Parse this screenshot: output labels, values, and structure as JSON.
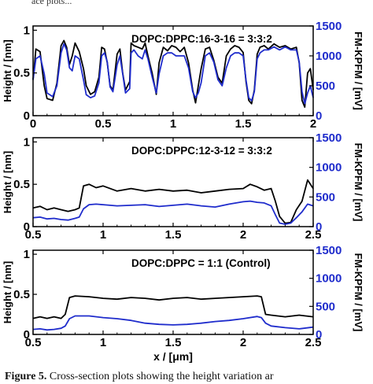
{
  "header_fragment": "ace plots...",
  "caption": {
    "label": "Figure 5.",
    "text": "Cross-section plots showing the height variation ar"
  },
  "chart_data": [
    {
      "type": "line",
      "title": "DOPC:DPPC:16-3-16 = 3:3:2",
      "xlabel": "",
      "ylabel": "Height / [nm]",
      "y2label": "FM-KPFM / [mV]",
      "xlim": [
        0,
        2
      ],
      "ylim": [
        0,
        1.05
      ],
      "y2lim": [
        0,
        1500
      ],
      "x_ticks": [
        "0",
        "0.5",
        "1",
        "1.5",
        "2"
      ],
      "y_ticks": [
        "0",
        "0.5",
        "1"
      ],
      "y2_ticks": [
        "0",
        "500",
        "1000",
        "1500"
      ],
      "colors": {
        "height": "#000000",
        "kpfm": "#1f2ccc"
      },
      "series": [
        {
          "axis": "left",
          "x": [
            0,
            0.02,
            0.05,
            0.08,
            0.1,
            0.14,
            0.17,
            0.2,
            0.22,
            0.24,
            0.26,
            0.28,
            0.3,
            0.33,
            0.36,
            0.38,
            0.41,
            0.44,
            0.47,
            0.49,
            0.51,
            0.53,
            0.55,
            0.57,
            0.6,
            0.62,
            0.64,
            0.66,
            0.69,
            0.7,
            0.72,
            0.75,
            0.78,
            0.8,
            0.82,
            0.85,
            0.88,
            0.9,
            0.93,
            0.96,
            0.99,
            1.02,
            1.05,
            1.08,
            1.11,
            1.14,
            1.16,
            1.18,
            1.2,
            1.23,
            1.26,
            1.29,
            1.32,
            1.35,
            1.38,
            1.41,
            1.44,
            1.47,
            1.5,
            1.52,
            1.54,
            1.56,
            1.58,
            1.6,
            1.62,
            1.65,
            1.68,
            1.72,
            1.76,
            1.8,
            1.84,
            1.88,
            1.9,
            1.92,
            1.94,
            1.96,
            1.98,
            2.0
          ],
          "values": [
            0.42,
            0.78,
            0.75,
            0.35,
            0.2,
            0.18,
            0.38,
            0.82,
            0.88,
            0.8,
            0.6,
            0.7,
            0.85,
            0.75,
            0.55,
            0.35,
            0.25,
            0.28,
            0.45,
            0.8,
            0.78,
            0.62,
            0.35,
            0.3,
            0.72,
            0.78,
            0.5,
            0.3,
            0.4,
            0.85,
            0.82,
            0.8,
            0.78,
            0.85,
            0.7,
            0.5,
            0.25,
            0.62,
            0.8,
            0.76,
            0.82,
            0.8,
            0.75,
            0.8,
            0.62,
            0.3,
            0.15,
            0.35,
            0.55,
            0.78,
            0.8,
            0.65,
            0.45,
            0.38,
            0.7,
            0.78,
            0.82,
            0.8,
            0.74,
            0.4,
            0.18,
            0.14,
            0.3,
            0.72,
            0.8,
            0.82,
            0.78,
            0.84,
            0.8,
            0.82,
            0.78,
            0.8,
            0.62,
            0.18,
            0.1,
            0.5,
            0.55,
            0.3
          ]
        },
        {
          "axis": "right",
          "x": [
            0,
            0.02,
            0.05,
            0.08,
            0.1,
            0.14,
            0.17,
            0.2,
            0.22,
            0.24,
            0.26,
            0.28,
            0.3,
            0.33,
            0.36,
            0.38,
            0.41,
            0.44,
            0.47,
            0.49,
            0.51,
            0.53,
            0.55,
            0.57,
            0.6,
            0.62,
            0.64,
            0.66,
            0.69,
            0.7,
            0.72,
            0.75,
            0.78,
            0.8,
            0.82,
            0.85,
            0.88,
            0.9,
            0.93,
            0.96,
            0.99,
            1.02,
            1.05,
            1.08,
            1.11,
            1.14,
            1.16,
            1.18,
            1.2,
            1.23,
            1.26,
            1.29,
            1.32,
            1.35,
            1.38,
            1.41,
            1.44,
            1.47,
            1.5,
            1.52,
            1.54,
            1.56,
            1.58,
            1.6,
            1.62,
            1.65,
            1.68,
            1.72,
            1.76,
            1.8,
            1.84,
            1.88,
            1.9,
            1.92,
            1.94,
            1.96,
            1.98,
            2.0
          ],
          "values": [
            600,
            950,
            1000,
            700,
            380,
            320,
            500,
            1050,
            1200,
            1100,
            800,
            750,
            1000,
            950,
            600,
            350,
            300,
            330,
            550,
            1000,
            1050,
            900,
            480,
            400,
            850,
            1000,
            700,
            380,
            450,
            1050,
            1100,
            1000,
            950,
            1100,
            950,
            650,
            380,
            700,
            1000,
            1050,
            1050,
            1000,
            1000,
            1000,
            800,
            400,
            300,
            380,
            550,
            1000,
            1050,
            900,
            600,
            500,
            800,
            1000,
            1050,
            1050,
            1000,
            600,
            300,
            250,
            400,
            950,
            1050,
            1100,
            1100,
            1150,
            1100,
            1150,
            1100,
            1100,
            900,
            400,
            200,
            380,
            500,
            300
          ]
        }
      ]
    },
    {
      "type": "line",
      "title": "DOPC:DPPC:12-3-12 = 3:3:2",
      "xlabel": "",
      "ylabel": "Height / [nm]",
      "y2label": "FM-KPFM / [mV]",
      "xlim": [
        0.5,
        2.5
      ],
      "ylim": [
        0,
        1.05
      ],
      "y2lim": [
        0,
        1500
      ],
      "x_ticks": [
        "0.5",
        "1",
        "1.5",
        "2",
        "2.5"
      ],
      "y_ticks": [
        "0",
        "0.5",
        "1"
      ],
      "y2_ticks": [
        "0",
        "500",
        "1000",
        "1500"
      ],
      "colors": {
        "height": "#000000",
        "kpfm": "#1f2ccc"
      },
      "series": [
        {
          "axis": "left",
          "x": [
            0.5,
            0.55,
            0.6,
            0.65,
            0.7,
            0.75,
            0.8,
            0.83,
            0.86,
            0.9,
            0.95,
            1.0,
            1.1,
            1.2,
            1.3,
            1.4,
            1.5,
            1.6,
            1.7,
            1.8,
            1.9,
            2.0,
            2.05,
            2.1,
            2.15,
            2.2,
            2.23,
            2.26,
            2.3,
            2.34,
            2.38,
            2.42,
            2.46,
            2.5
          ],
          "values": [
            0.22,
            0.24,
            0.2,
            0.22,
            0.2,
            0.18,
            0.2,
            0.22,
            0.48,
            0.5,
            0.46,
            0.48,
            0.42,
            0.45,
            0.42,
            0.44,
            0.42,
            0.43,
            0.4,
            0.42,
            0.44,
            0.45,
            0.5,
            0.47,
            0.43,
            0.45,
            0.3,
            0.12,
            0.04,
            0.05,
            0.2,
            0.3,
            0.55,
            0.45
          ]
        },
        {
          "axis": "right",
          "x": [
            0.5,
            0.55,
            0.6,
            0.65,
            0.7,
            0.75,
            0.8,
            0.83,
            0.86,
            0.9,
            0.95,
            1.0,
            1.1,
            1.2,
            1.3,
            1.4,
            1.5,
            1.6,
            1.7,
            1.8,
            1.9,
            2.0,
            2.05,
            2.1,
            2.15,
            2.2,
            2.23,
            2.26,
            2.3,
            2.34,
            2.38,
            2.42,
            2.46,
            2.5
          ],
          "values": [
            150,
            160,
            130,
            140,
            120,
            110,
            140,
            160,
            300,
            370,
            380,
            370,
            350,
            360,
            370,
            340,
            360,
            380,
            350,
            330,
            380,
            420,
            430,
            410,
            400,
            350,
            200,
            60,
            40,
            60,
            150,
            250,
            380,
            350
          ]
        }
      ]
    },
    {
      "type": "line",
      "title": "DOPC:DPPC = 1:1 (Control)",
      "xlabel": "x / [μm]",
      "ylabel": "Height / [nm]",
      "y2label": "FM-KPFM / [mV]",
      "xlim": [
        0.5,
        2.5
      ],
      "ylim": [
        0,
        1.05
      ],
      "y2lim": [
        0,
        1500
      ],
      "x_ticks": [
        "0.5",
        "1",
        "1.5",
        "2",
        "2.5"
      ],
      "y_ticks": [
        "0",
        "0.5",
        "1"
      ],
      "y2_ticks": [
        "0",
        "500",
        "1000",
        "1500"
      ],
      "colors": {
        "height": "#000000",
        "kpfm": "#1f2ccc"
      },
      "series": [
        {
          "axis": "left",
          "x": [
            0.5,
            0.55,
            0.6,
            0.65,
            0.7,
            0.73,
            0.76,
            0.8,
            0.9,
            1.0,
            1.1,
            1.2,
            1.3,
            1.4,
            1.5,
            1.6,
            1.7,
            1.8,
            1.9,
            2.0,
            2.1,
            2.13,
            2.16,
            2.2,
            2.3,
            2.4,
            2.5
          ],
          "values": [
            0.2,
            0.22,
            0.2,
            0.22,
            0.2,
            0.25,
            0.46,
            0.48,
            0.47,
            0.45,
            0.44,
            0.46,
            0.45,
            0.43,
            0.45,
            0.46,
            0.44,
            0.45,
            0.46,
            0.47,
            0.48,
            0.47,
            0.25,
            0.24,
            0.22,
            0.24,
            0.22
          ]
        },
        {
          "axis": "right",
          "x": [
            0.5,
            0.55,
            0.6,
            0.65,
            0.7,
            0.73,
            0.76,
            0.8,
            0.9,
            1.0,
            1.1,
            1.2,
            1.3,
            1.4,
            1.5,
            1.6,
            1.7,
            1.8,
            1.9,
            2.0,
            2.1,
            2.13,
            2.16,
            2.2,
            2.3,
            2.4,
            2.5
          ],
          "values": [
            90,
            100,
            80,
            90,
            110,
            150,
            280,
            330,
            330,
            300,
            280,
            250,
            200,
            180,
            170,
            180,
            200,
            230,
            250,
            280,
            320,
            300,
            200,
            150,
            120,
            100,
            130
          ]
        }
      ]
    }
  ]
}
